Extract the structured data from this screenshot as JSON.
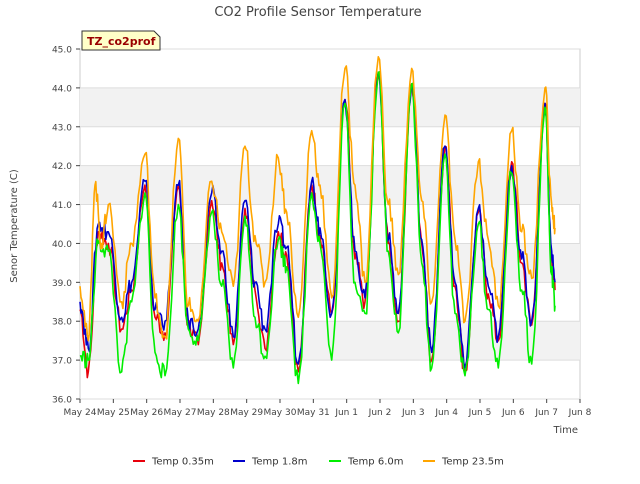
{
  "chart_data": {
    "type": "line",
    "title": "CO2 Profile Sensor Temperature",
    "xlabel": "Time",
    "ylabel": "Senor Temperature (C)",
    "station_label": "TZ_co2prof",
    "x_ticks": [
      "May 24",
      "May 25",
      "May 26",
      "May 27",
      "May 28",
      "May 29",
      "May 30",
      "May 31",
      "Jun 1",
      "Jun 2",
      "Jun 3",
      "Jun 4",
      "Jun 5",
      "Jun 6",
      "Jun 7",
      "Jun 8"
    ],
    "y_ticks": [
      "36.0",
      "37.0",
      "38.0",
      "39.0",
      "40.0",
      "41.0",
      "42.0",
      "43.0",
      "44.0",
      "45.0"
    ],
    "ylim": [
      36.0,
      45.0
    ],
    "xlim": [
      "2016-05-24",
      "2016-06-08"
    ],
    "grid": true,
    "legend_position": "bottom",
    "series": [
      {
        "name": "Temp 0.35m",
        "color": "#e8000b",
        "points": [
          [
            0.0,
            38.3
          ],
          [
            0.25,
            36.7
          ],
          [
            0.55,
            40.3
          ],
          [
            0.85,
            40.0
          ],
          [
            1.25,
            37.8
          ],
          [
            1.55,
            38.8
          ],
          [
            1.95,
            41.5
          ],
          [
            2.25,
            38.1
          ],
          [
            2.55,
            37.7
          ],
          [
            2.95,
            41.5
          ],
          [
            3.25,
            37.9
          ],
          [
            3.55,
            37.4
          ],
          [
            3.95,
            41.1
          ],
          [
            4.25,
            39.5
          ],
          [
            4.6,
            37.4
          ],
          [
            4.95,
            40.9
          ],
          [
            5.25,
            38.8
          ],
          [
            5.55,
            37.3
          ],
          [
            5.95,
            40.3
          ],
          [
            6.2,
            39.7
          ],
          [
            6.55,
            36.7
          ],
          [
            6.95,
            41.5
          ],
          [
            7.2,
            40.2
          ],
          [
            7.55,
            38.2
          ],
          [
            7.95,
            43.7
          ],
          [
            8.25,
            39.6
          ],
          [
            8.55,
            38.5
          ],
          [
            8.95,
            44.4
          ],
          [
            9.25,
            40.0
          ],
          [
            9.55,
            38.0
          ],
          [
            9.95,
            44.1
          ],
          [
            10.25,
            40.0
          ],
          [
            10.55,
            37.0
          ],
          [
            10.95,
            42.5
          ],
          [
            11.25,
            38.9
          ],
          [
            11.55,
            36.7
          ],
          [
            11.95,
            40.8
          ],
          [
            12.25,
            38.7
          ],
          [
            12.55,
            37.5
          ],
          [
            12.95,
            42.1
          ],
          [
            13.25,
            39.5
          ],
          [
            13.55,
            37.9
          ],
          [
            13.95,
            43.6
          ],
          [
            14.15,
            39.6
          ],
          [
            14.25,
            38.8
          ]
        ]
      },
      {
        "name": "Temp 1.8m",
        "color": "#0000cc",
        "points": [
          [
            0.0,
            38.5
          ],
          [
            0.25,
            37.3
          ],
          [
            0.55,
            40.5
          ],
          [
            0.85,
            40.3
          ],
          [
            1.25,
            38.1
          ],
          [
            1.55,
            39.0
          ],
          [
            1.95,
            41.6
          ],
          [
            2.25,
            38.3
          ],
          [
            2.55,
            38.0
          ],
          [
            2.95,
            41.5
          ],
          [
            3.25,
            38.0
          ],
          [
            3.55,
            37.8
          ],
          [
            3.95,
            41.3
          ],
          [
            4.25,
            39.8
          ],
          [
            4.6,
            37.6
          ],
          [
            4.95,
            41.1
          ],
          [
            5.25,
            39.0
          ],
          [
            5.55,
            37.8
          ],
          [
            5.95,
            40.5
          ],
          [
            6.2,
            39.9
          ],
          [
            6.55,
            36.9
          ],
          [
            6.95,
            41.6
          ],
          [
            7.2,
            40.4
          ],
          [
            7.55,
            38.2
          ],
          [
            7.95,
            43.7
          ],
          [
            8.25,
            39.8
          ],
          [
            8.55,
            38.6
          ],
          [
            8.95,
            44.4
          ],
          [
            9.25,
            40.1
          ],
          [
            9.55,
            38.2
          ],
          [
            9.95,
            44.1
          ],
          [
            10.25,
            40.1
          ],
          [
            10.55,
            37.2
          ],
          [
            10.95,
            42.5
          ],
          [
            11.25,
            39.0
          ],
          [
            11.55,
            36.8
          ],
          [
            11.95,
            40.9
          ],
          [
            12.25,
            38.9
          ],
          [
            12.55,
            37.6
          ],
          [
            12.95,
            42.0
          ],
          [
            13.25,
            39.6
          ],
          [
            13.55,
            38.0
          ],
          [
            13.95,
            43.6
          ],
          [
            14.15,
            39.8
          ],
          [
            14.25,
            39.0
          ]
        ]
      },
      {
        "name": "Temp 6.0m",
        "color": "#00ee00",
        "points": [
          [
            0.0,
            37.1
          ],
          [
            0.25,
            37.0
          ],
          [
            0.55,
            40.0
          ],
          [
            0.85,
            39.8
          ],
          [
            1.25,
            36.7
          ],
          [
            1.55,
            38.5
          ],
          [
            1.95,
            41.3
          ],
          [
            2.25,
            37.2
          ],
          [
            2.55,
            36.6
          ],
          [
            2.95,
            41.0
          ],
          [
            3.25,
            37.8
          ],
          [
            3.55,
            37.5
          ],
          [
            3.95,
            40.8
          ],
          [
            4.25,
            38.9
          ],
          [
            4.6,
            36.8
          ],
          [
            4.95,
            40.7
          ],
          [
            5.25,
            38.1
          ],
          [
            5.55,
            37.1
          ],
          [
            5.95,
            40.1
          ],
          [
            6.2,
            39.4
          ],
          [
            6.55,
            36.4
          ],
          [
            6.95,
            41.3
          ],
          [
            7.2,
            40.0
          ],
          [
            7.55,
            37.0
          ],
          [
            7.95,
            43.6
          ],
          [
            8.25,
            39.0
          ],
          [
            8.55,
            38.2
          ],
          [
            8.95,
            44.4
          ],
          [
            9.25,
            39.8
          ],
          [
            9.55,
            37.7
          ],
          [
            9.95,
            44.1
          ],
          [
            10.25,
            39.5
          ],
          [
            10.55,
            36.8
          ],
          [
            10.95,
            42.3
          ],
          [
            11.25,
            38.2
          ],
          [
            11.55,
            36.6
          ],
          [
            11.95,
            40.5
          ],
          [
            12.25,
            38.3
          ],
          [
            12.55,
            36.8
          ],
          [
            12.95,
            41.8
          ],
          [
            13.25,
            38.8
          ],
          [
            13.55,
            36.9
          ],
          [
            13.95,
            43.5
          ],
          [
            14.15,
            39.2
          ],
          [
            14.25,
            38.4
          ]
        ]
      },
      {
        "name": "Temp 23.5m",
        "color": "#ffa500",
        "points": [
          [
            0.0,
            38.9
          ],
          [
            0.25,
            37.5
          ],
          [
            0.45,
            41.5
          ],
          [
            0.65,
            40.0
          ],
          [
            0.85,
            41.0
          ],
          [
            1.25,
            38.5
          ],
          [
            1.55,
            40.0
          ],
          [
            1.95,
            42.3
          ],
          [
            2.25,
            38.6
          ],
          [
            2.55,
            37.6
          ],
          [
            2.95,
            42.7
          ],
          [
            3.25,
            38.4
          ],
          [
            3.55,
            38.0
          ],
          [
            3.95,
            41.6
          ],
          [
            4.25,
            40.3
          ],
          [
            4.6,
            38.9
          ],
          [
            4.95,
            42.5
          ],
          [
            5.25,
            40.2
          ],
          [
            5.55,
            39.0
          ],
          [
            5.95,
            42.2
          ],
          [
            6.2,
            40.8
          ],
          [
            6.55,
            38.1
          ],
          [
            6.95,
            42.9
          ],
          [
            7.2,
            41.5
          ],
          [
            7.55,
            38.6
          ],
          [
            7.95,
            44.5
          ],
          [
            8.25,
            41.5
          ],
          [
            8.55,
            39.0
          ],
          [
            8.95,
            44.8
          ],
          [
            9.25,
            41.0
          ],
          [
            9.55,
            39.2
          ],
          [
            9.95,
            44.5
          ],
          [
            10.25,
            41.1
          ],
          [
            10.55,
            38.5
          ],
          [
            10.95,
            43.3
          ],
          [
            11.25,
            40.1
          ],
          [
            11.55,
            38.0
          ],
          [
            11.95,
            42.1
          ],
          [
            12.25,
            40.1
          ],
          [
            12.55,
            38.4
          ],
          [
            12.95,
            42.9
          ],
          [
            13.25,
            40.3
          ],
          [
            13.55,
            39.1
          ],
          [
            13.95,
            44.0
          ],
          [
            14.15,
            41.0
          ],
          [
            14.25,
            40.4
          ]
        ]
      }
    ]
  }
}
